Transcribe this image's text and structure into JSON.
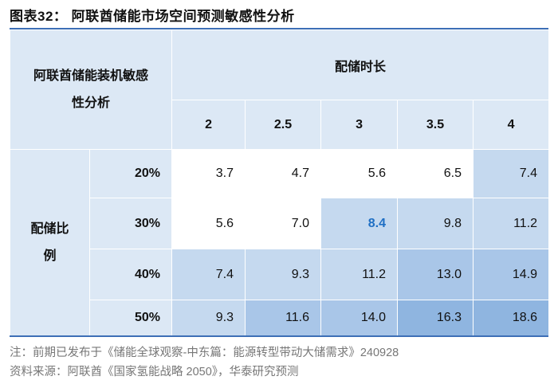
{
  "title": "图表32：  阿联酋储能市场空间预测敏感性分析",
  "table": {
    "corner_label_line1": "阿联酋储能装机敏感",
    "corner_label_line2": "性分析",
    "col_group_label": "配储时长",
    "row_group_label_line1": "配储比",
    "row_group_label_line2": "例",
    "columns": [
      "2",
      "2.5",
      "3",
      "3.5",
      "4"
    ],
    "rows": [
      {
        "ratio": "20%",
        "values": [
          "3.7",
          "4.7",
          "5.6",
          "6.5",
          "7.4"
        ]
      },
      {
        "ratio": "30%",
        "values": [
          "5.6",
          "7.0",
          "8.4",
          "9.8",
          "11.2"
        ]
      },
      {
        "ratio": "40%",
        "values": [
          "7.4",
          "9.3",
          "11.2",
          "13.0",
          "14.9"
        ]
      },
      {
        "ratio": "50%",
        "values": [
          "9.3",
          "11.6",
          "14.0",
          "16.3",
          "18.6"
        ]
      }
    ],
    "highlight_color": "#1f6fc4",
    "shade_colors": [
      "#ffffff",
      "#c5d9ef",
      "#a9c6e8",
      "#8fb5e0"
    ]
  },
  "notes": {
    "note": "注：前期已发布于《储能全球观察-中东篇：能源转型带动大储需求》240928",
    "source": "资料来源：阿联酋《国家氢能战略 2050》，华泰研究预测"
  }
}
